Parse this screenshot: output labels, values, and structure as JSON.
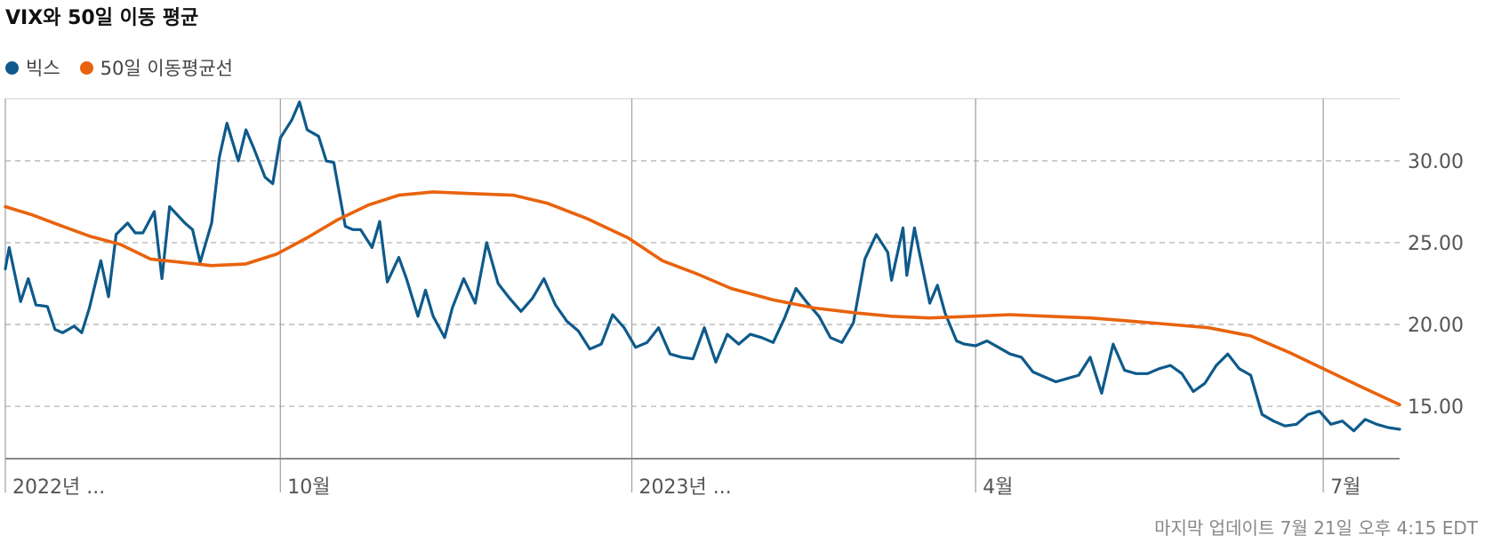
{
  "title": "VIX와 50일 이동 평균",
  "legend": [
    {
      "label": "빅스",
      "color": "#0e5a8a"
    },
    {
      "label": "50일 이동평균선",
      "color": "#e8630d"
    }
  ],
  "footer": "마지막 업데이트 7월 21일 오후 4:15 EDT",
  "chart_data": {
    "type": "line",
    "title": "VIX와 50일 이동 평균",
    "xlabel": "",
    "ylabel": "",
    "ylim": [
      11.8,
      33.8
    ],
    "xlim": [
      "2022-07-21",
      "2023-07-21"
    ],
    "y_ticks": [
      {
        "value": 15,
        "label": "15.00"
      },
      {
        "value": 20,
        "label": "20.00"
      },
      {
        "value": 25,
        "label": "25.00"
      },
      {
        "value": 30,
        "label": "30.00"
      }
    ],
    "x_ticks": [
      {
        "date": "2022-07-21",
        "label": "2022년 ..."
      },
      {
        "date": "2022-10-01",
        "label": "10월"
      },
      {
        "date": "2023-01-01",
        "label": "2023년 ..."
      },
      {
        "date": "2023-04-01",
        "label": "4월"
      },
      {
        "date": "2023-07-01",
        "label": "7월"
      }
    ],
    "grid": "horizontal dashed, vertical solid at x ticks",
    "series": [
      {
        "name": "빅스",
        "color": "#0e5a8a",
        "x": [
          "2022-07-21",
          "2022-07-22",
          "2022-07-25",
          "2022-07-27",
          "2022-07-29",
          "2022-08-01",
          "2022-08-03",
          "2022-08-05",
          "2022-08-08",
          "2022-08-10",
          "2022-08-12",
          "2022-08-15",
          "2022-08-17",
          "2022-08-19",
          "2022-08-22",
          "2022-08-24",
          "2022-08-26",
          "2022-08-29",
          "2022-08-31",
          "2022-09-02",
          "2022-09-06",
          "2022-09-08",
          "2022-09-10",
          "2022-09-13",
          "2022-09-15",
          "2022-09-17",
          "2022-09-20",
          "2022-09-22",
          "2022-09-24",
          "2022-09-27",
          "2022-09-29",
          "2022-10-01",
          "2022-10-04",
          "2022-10-06",
          "2022-10-08",
          "2022-10-11",
          "2022-10-13",
          "2022-10-15",
          "2022-10-18",
          "2022-10-20",
          "2022-10-22",
          "2022-10-25",
          "2022-10-27",
          "2022-10-29",
          "2022-11-01",
          "2022-11-03",
          "2022-11-06",
          "2022-11-08",
          "2022-11-10",
          "2022-11-13",
          "2022-11-15",
          "2022-11-18",
          "2022-11-21",
          "2022-11-24",
          "2022-11-27",
          "2022-11-30",
          "2022-12-03",
          "2022-12-06",
          "2022-12-09",
          "2022-12-12",
          "2022-12-15",
          "2022-12-18",
          "2022-12-21",
          "2022-12-24",
          "2022-12-27",
          "2022-12-30",
          "2023-01-02",
          "2023-01-05",
          "2023-01-08",
          "2023-01-11",
          "2023-01-14",
          "2023-01-17",
          "2023-01-20",
          "2023-01-23",
          "2023-01-26",
          "2023-01-29",
          "2023-02-01",
          "2023-02-04",
          "2023-02-07",
          "2023-02-10",
          "2023-02-13",
          "2023-02-16",
          "2023-02-19",
          "2023-02-22",
          "2023-02-25",
          "2023-02-28",
          "2023-03-03",
          "2023-03-06",
          "2023-03-09",
          "2023-03-10",
          "2023-03-13",
          "2023-03-14",
          "2023-03-16",
          "2023-03-17",
          "2023-03-20",
          "2023-03-22",
          "2023-03-24",
          "2023-03-27",
          "2023-03-29",
          "2023-04-01",
          "2023-04-04",
          "2023-04-07",
          "2023-04-10",
          "2023-04-13",
          "2023-04-16",
          "2023-04-19",
          "2023-04-22",
          "2023-04-25",
          "2023-04-28",
          "2023-05-01",
          "2023-05-04",
          "2023-05-07",
          "2023-05-10",
          "2023-05-13",
          "2023-05-16",
          "2023-05-19",
          "2023-05-22",
          "2023-05-25",
          "2023-05-28",
          "2023-05-31",
          "2023-06-03",
          "2023-06-06",
          "2023-06-09",
          "2023-06-12",
          "2023-06-15",
          "2023-06-18",
          "2023-06-21",
          "2023-06-24",
          "2023-06-27",
          "2023-06-30",
          "2023-07-03",
          "2023-07-06",
          "2023-07-09",
          "2023-07-12",
          "2023-07-15",
          "2023-07-18",
          "2023-07-21"
        ],
        "y": [
          23.4,
          24.7,
          21.4,
          22.8,
          21.2,
          21.1,
          19.7,
          19.5,
          19.9,
          19.5,
          21.0,
          23.9,
          21.7,
          25.5,
          26.2,
          25.6,
          25.6,
          26.9,
          22.8,
          27.2,
          26.2,
          25.8,
          23.8,
          26.2,
          30.2,
          32.3,
          30.0,
          31.9,
          30.8,
          29.0,
          28.6,
          31.4,
          32.5,
          33.6,
          31.9,
          31.5,
          30.0,
          29.9,
          26.0,
          25.8,
          25.8,
          24.7,
          26.3,
          22.6,
          24.1,
          22.8,
          20.5,
          22.1,
          20.5,
          19.2,
          21.0,
          22.8,
          21.3,
          25.0,
          22.5,
          21.6,
          20.8,
          21.6,
          22.8,
          21.2,
          20.2,
          19.6,
          18.5,
          18.8,
          20.6,
          19.8,
          18.6,
          18.9,
          19.8,
          18.2,
          18.0,
          17.9,
          19.8,
          17.7,
          19.4,
          18.8,
          19.4,
          19.2,
          18.9,
          20.4,
          22.2,
          21.3,
          20.5,
          19.2,
          18.9,
          20.1,
          24.0,
          25.5,
          24.4,
          22.7,
          25.9,
          23.0,
          25.9,
          24.7,
          21.3,
          22.4,
          20.7,
          19.0,
          18.8,
          18.7,
          19.0,
          18.6,
          18.2,
          18.0,
          17.1,
          16.8,
          16.5,
          16.7,
          16.9,
          18.0,
          15.8,
          18.8,
          17.2,
          17.0,
          17.0,
          17.3,
          17.5,
          17.0,
          15.9,
          16.4,
          17.5,
          18.2,
          17.3,
          16.9,
          14.5,
          14.1,
          13.8,
          13.9,
          14.5,
          14.7,
          13.9,
          14.1,
          13.5,
          14.2,
          13.9,
          13.7,
          13.6
        ]
      },
      {
        "name": "50일 이동평균선",
        "color": "#e8630d",
        "x": [
          "2022-07-21",
          "2022-07-28",
          "2022-08-05",
          "2022-08-12",
          "2022-08-20",
          "2022-08-28",
          "2022-09-05",
          "2022-09-13",
          "2022-09-22",
          "2022-09-30",
          "2022-10-08",
          "2022-10-16",
          "2022-10-24",
          "2022-11-01",
          "2022-11-10",
          "2022-11-20",
          "2022-12-01",
          "2022-12-10",
          "2022-12-20",
          "2022-12-31",
          "2023-01-09",
          "2023-01-18",
          "2023-01-27",
          "2023-02-07",
          "2023-02-18",
          "2023-03-01",
          "2023-03-10",
          "2023-03-20",
          "2023-03-31",
          "2023-04-10",
          "2023-04-20",
          "2023-05-01",
          "2023-05-12",
          "2023-05-22",
          "2023-06-01",
          "2023-06-12",
          "2023-06-22",
          "2023-07-01",
          "2023-07-10",
          "2023-07-21"
        ],
        "y": [
          27.2,
          26.7,
          26.0,
          25.4,
          24.9,
          24.0,
          23.8,
          23.6,
          23.7,
          24.3,
          25.3,
          26.4,
          27.3,
          27.9,
          28.1,
          28.0,
          27.9,
          27.4,
          26.5,
          25.3,
          23.9,
          23.1,
          22.2,
          21.5,
          21.0,
          20.7,
          20.5,
          20.4,
          20.5,
          20.6,
          20.5,
          20.4,
          20.2,
          20.0,
          19.8,
          19.3,
          18.3,
          17.3,
          16.3,
          15.1
        ]
      }
    ]
  }
}
